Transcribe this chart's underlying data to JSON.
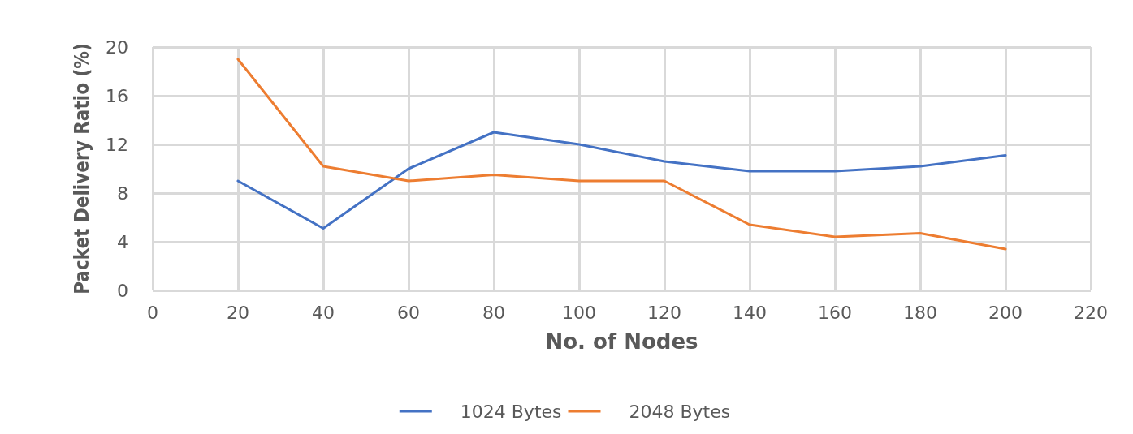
{
  "chart_data": {
    "type": "line",
    "xlabel": "No. of Nodes",
    "ylabel": "Packet Delivery Ratio (%)",
    "x": [
      20,
      40,
      60,
      80,
      100,
      120,
      140,
      160,
      180,
      200
    ],
    "series": [
      {
        "name": "1024 Bytes",
        "color": "#4472c4",
        "values": [
          9,
          5.1,
          10,
          13,
          12,
          10.6,
          9.8,
          9.8,
          10.2,
          11.1
        ]
      },
      {
        "name": "2048 Bytes",
        "color": "#ed7d31",
        "values": [
          19,
          10.2,
          9,
          9.5,
          9,
          9,
          5.4,
          4.4,
          4.7,
          3.4
        ]
      }
    ],
    "xlim": [
      0,
      220
    ],
    "xticks": [
      0,
      20,
      40,
      60,
      80,
      100,
      120,
      140,
      160,
      180,
      200,
      220
    ],
    "ylim": [
      0,
      20
    ],
    "yticks": [
      0,
      4,
      8,
      12,
      16,
      20
    ],
    "grid": true,
    "legend": "bottom",
    "marker": "none",
    "line_style": "solid"
  }
}
